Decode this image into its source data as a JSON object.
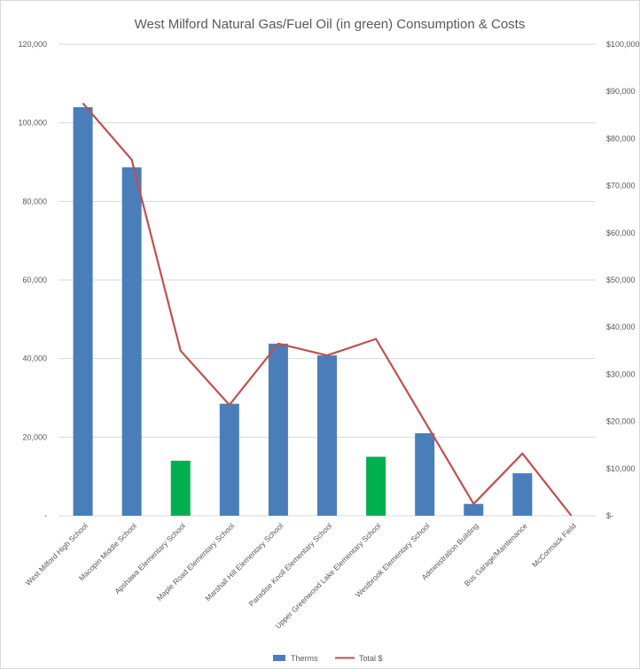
{
  "chart_data": {
    "type": "bar",
    "title": "West Milford  Natural Gas/Fuel Oil (in green) Consumption & Costs",
    "xlabel": "",
    "ylabel": "",
    "categories": [
      "West Milford High School",
      "Macopin Middle School",
      "Apshawa Elementary School",
      "Maple Road Elementary School",
      "Marshall Hill Elementary School",
      "Paradise Knoll Elementary School",
      "Upper Greenwood Lake Elementary School",
      "Westbrook Elementary School",
      "Administration Building",
      "Bus Garage/Maintenance",
      "McCormack Field"
    ],
    "series": [
      {
        "name": "Therms",
        "type": "bar",
        "axis": "left",
        "color": "#4a7ebb",
        "values": [
          104000,
          88700,
          14000,
          28500,
          43800,
          40800,
          15000,
          21000,
          3000,
          10800,
          0
        ]
      },
      {
        "name": "Total $",
        "type": "line",
        "axis": "right",
        "color": "#c0504d",
        "values": [
          87500,
          75500,
          35000,
          23500,
          36500,
          34000,
          37500,
          20000,
          2500,
          13200,
          0
        ]
      }
    ],
    "fuel_oil_categories": [
      "Apshawa Elementary School",
      "Upper Greenwood Lake Elementary School"
    ],
    "fuel_oil_color": "#00b050",
    "y_left": {
      "lim": [
        0,
        120000
      ],
      "ticks": [
        0,
        20000,
        40000,
        60000,
        80000,
        100000,
        120000
      ],
      "tick_labels": [
        "-",
        "20,000",
        "40,000",
        "60,000",
        "80,000",
        "100,000",
        "120,000"
      ]
    },
    "y_right": {
      "lim": [
        0,
        100000
      ],
      "ticks": [
        0,
        10000,
        20000,
        30000,
        40000,
        50000,
        60000,
        70000,
        80000,
        90000,
        100000
      ],
      "tick_labels": [
        "$-",
        "$10,000",
        "$20,000",
        "$30,000",
        "$40,000",
        "$50,000",
        "$60,000",
        "$70,000",
        "$80,000",
        "$90,000",
        "$100,000"
      ]
    },
    "grid": true,
    "legend": "bottom"
  }
}
